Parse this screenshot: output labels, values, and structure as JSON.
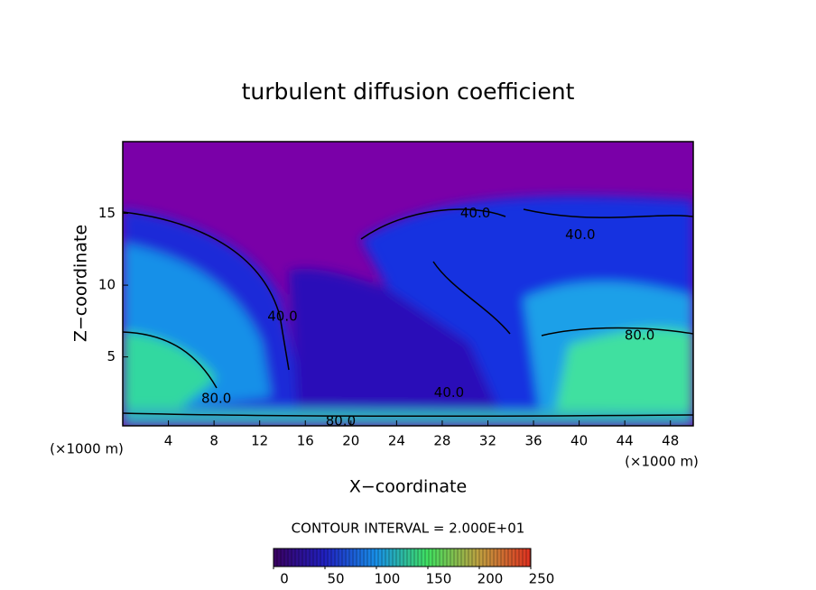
{
  "chart_data": {
    "type": "contour",
    "title": "turbulent diffusion coefficient",
    "x_label": "X−coordinate",
    "y_label": "Z−coordinate",
    "x_unit_labels": [
      "(×1000 m)",
      "(×1000 m)"
    ],
    "xlim": [
      0,
      50
    ],
    "ylim": [
      0.2,
      20
    ],
    "xticks": [
      4,
      8,
      12,
      16,
      20,
      24,
      28,
      32,
      36,
      40,
      44,
      48
    ],
    "yticks": [
      5,
      10,
      15
    ],
    "contour_interval_label": "CONTOUR INTERVAL = 2.000E+01",
    "contour_labels": [
      {
        "value": 40,
        "label": "40.0",
        "x": 40.1,
        "y": 13.5
      },
      {
        "value": 40,
        "label": "40.0",
        "x": 30.9,
        "y": 15.0
      },
      {
        "value": 80,
        "label": "80.0",
        "x": 45.3,
        "y": 6.5
      },
      {
        "value": 80,
        "label": "80.0",
        "x": 8.2,
        "y": 2.1
      },
      {
        "value": 40,
        "label": "40.0",
        "x": 28.6,
        "y": 2.5
      },
      {
        "value": 80,
        "label": "80.0",
        "x": 19.1,
        "y": 0.5
      },
      {
        "value": 40,
        "label": "40.0",
        "x": 14.0,
        "y": 7.8
      }
    ],
    "colorbar": {
      "lim": [
        0,
        250
      ],
      "ticks": [
        0,
        50,
        100,
        150,
        200,
        250
      ],
      "colors": [
        "#3a0060",
        "#2020c0",
        "#1890e8",
        "#40e060",
        "#c0a040",
        "#e03020"
      ]
    }
  }
}
